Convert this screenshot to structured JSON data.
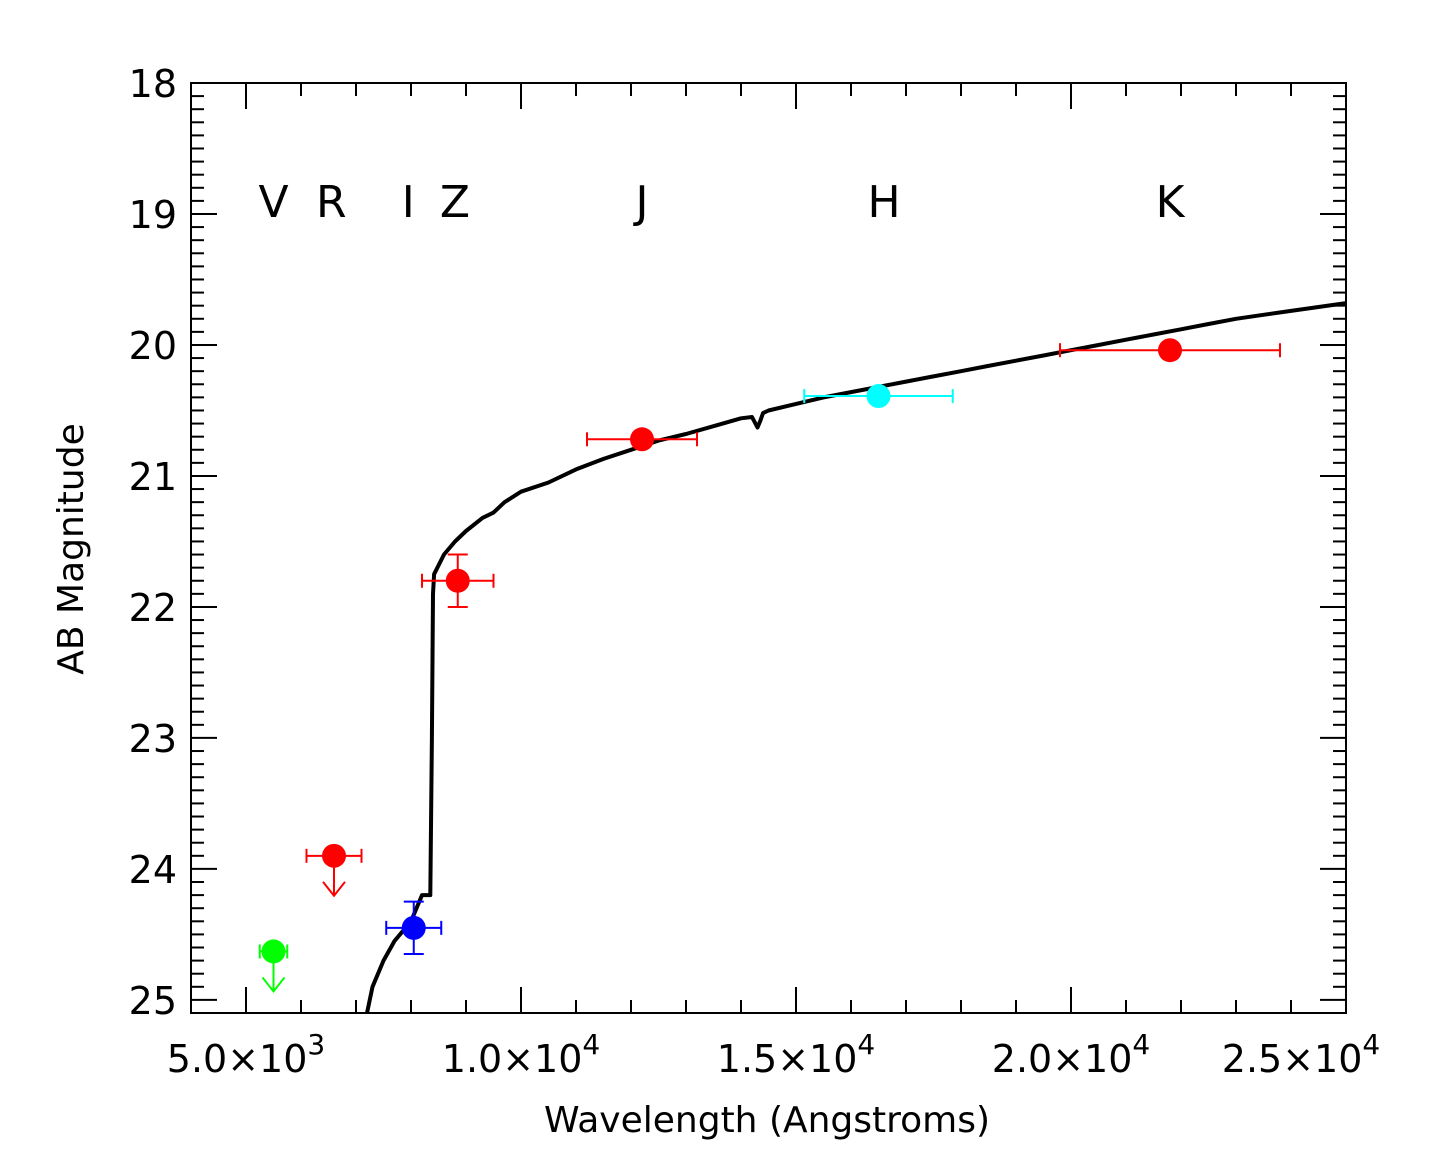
{
  "chart_data": {
    "type": "scatter",
    "title": "",
    "xlabel": "Wavelength (Angstroms)",
    "ylabel": "AB Magnitude",
    "xlim": [
      4000,
      25000
    ],
    "ylim": [
      25.1,
      18.0
    ],
    "y_inverted": true,
    "x_ticks": [
      5000,
      10000,
      15000,
      20000,
      25000
    ],
    "x_tick_labels": [
      {
        "mantissa": "5.0×10",
        "exp": "3"
      },
      {
        "mantissa": "1.0×10",
        "exp": "4"
      },
      {
        "mantissa": "1.5×10",
        "exp": "4"
      },
      {
        "mantissa": "2.0×10",
        "exp": "4"
      },
      {
        "mantissa": "2.5×10",
        "exp": "4"
      }
    ],
    "y_ticks": [
      18,
      19,
      20,
      21,
      22,
      23,
      24,
      25
    ],
    "y_tick_labels": [
      "18",
      "19",
      "20",
      "21",
      "22",
      "23",
      "24",
      "25"
    ],
    "band_labels": [
      {
        "text": "V",
        "x": 5500
      },
      {
        "text": "R",
        "x": 6550
      },
      {
        "text": "I",
        "x": 7950
      },
      {
        "text": "Z",
        "x": 8800
      },
      {
        "text": "J",
        "x": 12200
      },
      {
        "text": "H",
        "x": 16600
      },
      {
        "text": "K",
        "x": 21800
      }
    ],
    "points": [
      {
        "band": "V",
        "x": 5500,
        "y": 24.63,
        "xerr": 250,
        "yerr": null,
        "upper_limit": true,
        "color": "#00ff00"
      },
      {
        "band": "R",
        "x": 6600,
        "y": 23.9,
        "xerr": 500,
        "yerr": null,
        "upper_limit": true,
        "color": "#ff0000"
      },
      {
        "band": "I",
        "x": 8050,
        "y": 24.45,
        "xerr": 500,
        "yerr": 0.2,
        "upper_limit": false,
        "color": "#0000ff"
      },
      {
        "band": "Z",
        "x": 8850,
        "y": 21.8,
        "xerr": 650,
        "yerr": 0.2,
        "upper_limit": false,
        "color": "#ff0000"
      },
      {
        "band": "J",
        "x": 12200,
        "y": 20.72,
        "xerr": 1000,
        "yerr": null,
        "upper_limit": false,
        "color": "#ff0000"
      },
      {
        "band": "H",
        "x": 16500,
        "y": 20.39,
        "xerr": 1350,
        "yerr": null,
        "upper_limit": false,
        "color": "#00ffff"
      },
      {
        "band": "K",
        "x": 21800,
        "y": 20.04,
        "xerr": 2000,
        "yerr": null,
        "upper_limit": false,
        "color": "#ff0000"
      }
    ],
    "model_curve": {
      "color": "#000000",
      "x": [
        7200,
        7300,
        7500,
        7700,
        8000,
        8200,
        8350,
        8380,
        8400,
        8420,
        8600,
        8800,
        9000,
        9300,
        9500,
        9700,
        10000,
        10500,
        11000,
        11500,
        12000,
        12500,
        13000,
        13500,
        14000,
        14200,
        14300,
        14350,
        14400,
        14500,
        15000,
        15500,
        16000,
        16500,
        17000,
        17500,
        18000,
        18500,
        19000,
        19500,
        20000,
        20500,
        21000,
        21500,
        22000,
        22500,
        23000,
        23500,
        24000,
        24500,
        25000
      ],
      "y": [
        25.1,
        24.9,
        24.7,
        24.55,
        24.4,
        24.2,
        24.2,
        23.0,
        21.9,
        21.75,
        21.6,
        21.5,
        21.42,
        21.32,
        21.28,
        21.2,
        21.12,
        21.05,
        20.95,
        20.87,
        20.8,
        20.73,
        20.68,
        20.62,
        20.56,
        20.55,
        20.63,
        20.58,
        20.52,
        20.5,
        20.45,
        20.4,
        20.36,
        20.32,
        20.28,
        20.24,
        20.2,
        20.16,
        20.12,
        20.08,
        20.04,
        20.0,
        19.96,
        19.92,
        19.88,
        19.84,
        19.8,
        19.77,
        19.74,
        19.71,
        19.68
      ]
    }
  }
}
